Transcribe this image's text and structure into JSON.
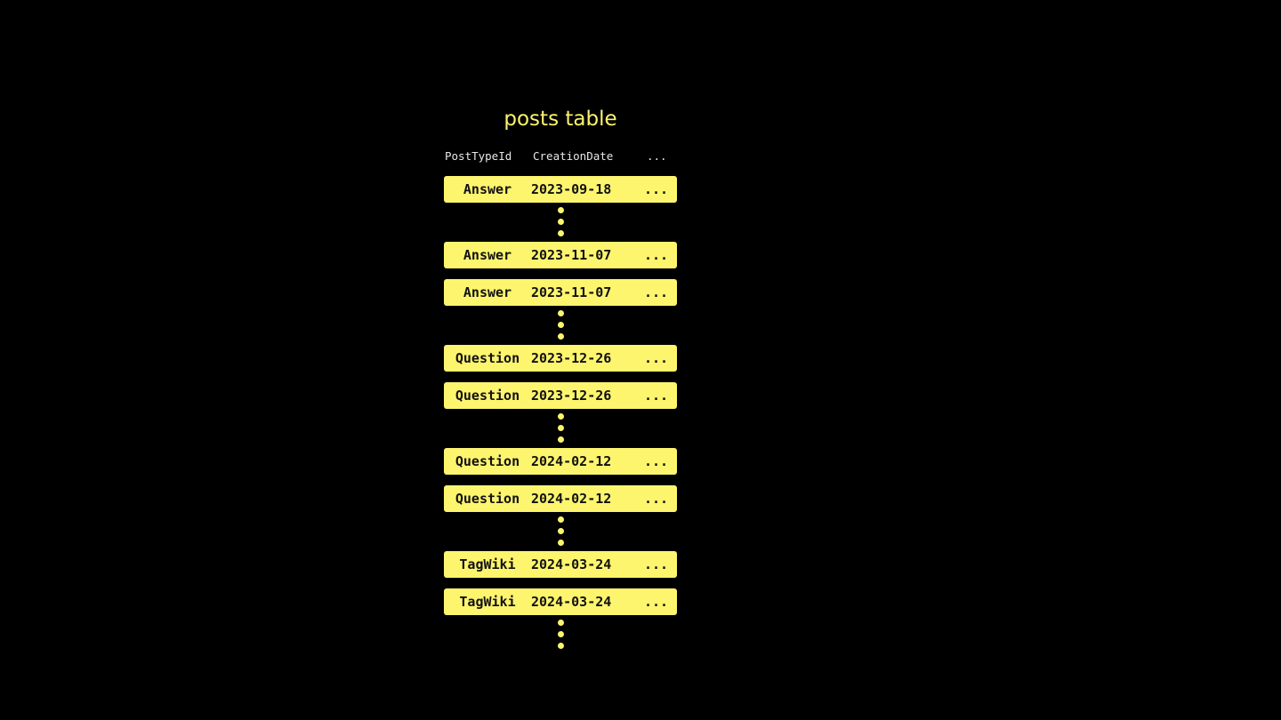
{
  "title": "posts table",
  "headers": [
    "PostTypeId",
    "CreationDate",
    "..."
  ],
  "sequence": [
    {
      "type": "row",
      "cells": [
        "Answer",
        "2023-09-18",
        "..."
      ]
    },
    {
      "type": "dots"
    },
    {
      "type": "row",
      "cells": [
        "Answer",
        "2023-11-07",
        "..."
      ]
    },
    {
      "type": "row",
      "cells": [
        "Answer",
        "2023-11-07",
        "..."
      ]
    },
    {
      "type": "dots"
    },
    {
      "type": "row",
      "cells": [
        "Question",
        "2023-12-26",
        "..."
      ]
    },
    {
      "type": "row",
      "cells": [
        "Question",
        "2023-12-26",
        "..."
      ]
    },
    {
      "type": "dots"
    },
    {
      "type": "row",
      "cells": [
        "Question",
        "2024-02-12",
        "..."
      ]
    },
    {
      "type": "row",
      "cells": [
        "Question",
        "2024-02-12",
        "..."
      ]
    },
    {
      "type": "dots"
    },
    {
      "type": "row",
      "cells": [
        "TagWiki",
        "2024-03-24",
        "..."
      ]
    },
    {
      "type": "row",
      "cells": [
        "TagWiki",
        "2024-03-24",
        "..."
      ]
    },
    {
      "type": "dots"
    }
  ],
  "colors": {
    "accent": "#fdf56e",
    "background": "#000000",
    "header_text": "#e8e8e8"
  }
}
